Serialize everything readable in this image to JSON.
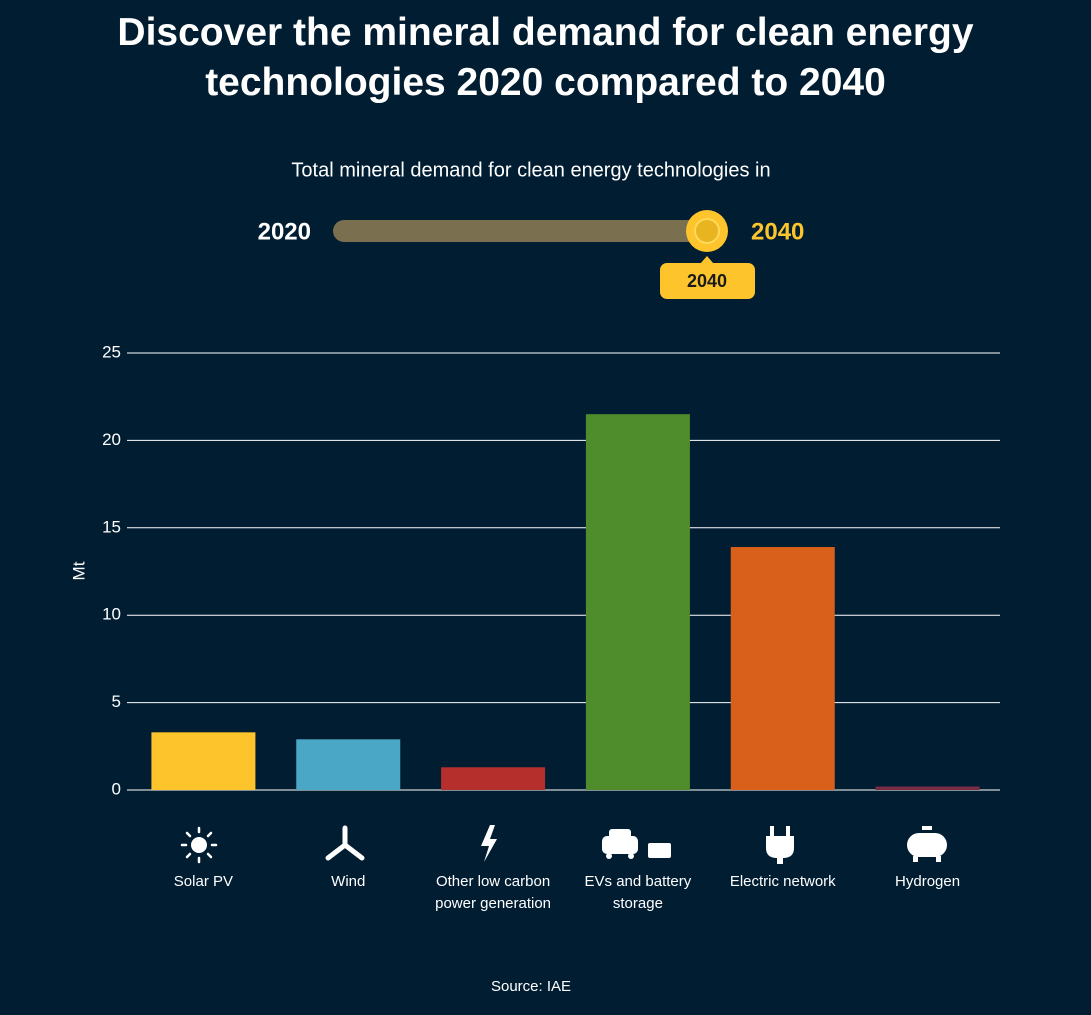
{
  "chart_data": {
    "type": "bar",
    "title": "Discover the mineral demand for clean energy technologies 2020 compared to 2040",
    "subtitle": "Total mineral demand for clean energy technologies in",
    "y_label": "Mt",
    "categories": [
      "Solar PV",
      "Wind",
      "Other low carbon power generation",
      "EVs and battery storage",
      "Electric network",
      "Hydrogen"
    ],
    "values": [
      3.3,
      2.9,
      1.3,
      21.5,
      13.9,
      0.2
    ],
    "colors": [
      "#fdc52b",
      "#4aa8c6",
      "#b52f2c",
      "#4f8c2c",
      "#d9601a",
      "#7a2b44"
    ],
    "ylim": [
      0,
      25
    ],
    "yticks": [
      0,
      5,
      10,
      15,
      20,
      25
    ],
    "grid": true,
    "source": "Source: IAE"
  },
  "slider": {
    "min_label": "2020",
    "max_label": "2040",
    "value_label": "2040"
  }
}
